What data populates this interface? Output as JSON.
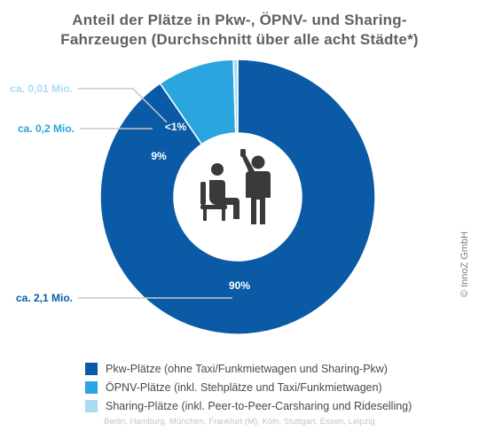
{
  "title": {
    "line1": "Anteil der Plätze in Pkw-, ÖPNV- und Sharing-",
    "line2": "Fahrzeugen (Durchschnitt über alle acht Städte*)"
  },
  "chart_data": {
    "type": "pie",
    "title": "Anteil der Plätze in Pkw-, ÖPNV- und Sharing-Fahrzeugen (Durchschnitt über alle acht Städte*)",
    "slices": [
      {
        "name": "Pkw-Plätze (ohne Taxi/Funkmietwagen und Sharing-Pkw)",
        "value": 90,
        "percent_label": "90%",
        "callout": "ca. 2,1 Mio.",
        "color": "#0a5aa5"
      },
      {
        "name": "ÖPNV-Plätze (inkl. Stehplätze und Taxi/Funkmietwagen)",
        "value": 9,
        "percent_label": "9%",
        "callout": "ca. 0,2 Mio.",
        "color": "#2aa5de"
      },
      {
        "name": "Sharing-Plätze (inkl. Peer-to-Peer-Carsharing und Rideselling)",
        "value": 0.5,
        "percent_label": "<1%",
        "callout": "ca. 0,01 Mio.",
        "color": "#a8dcf3"
      }
    ],
    "legend_position": "bottom-left",
    "note": "Berlin, Hamburg, München, Frankfurt (M), Köln, Stuttgart, Essen, Leipzig"
  },
  "callout_colors": [
    "#0a5aa5",
    "#2aa5de",
    "#a8dcf3"
  ],
  "center_icon": "passengers-icon",
  "credit": "© InnoZ GmbH"
}
